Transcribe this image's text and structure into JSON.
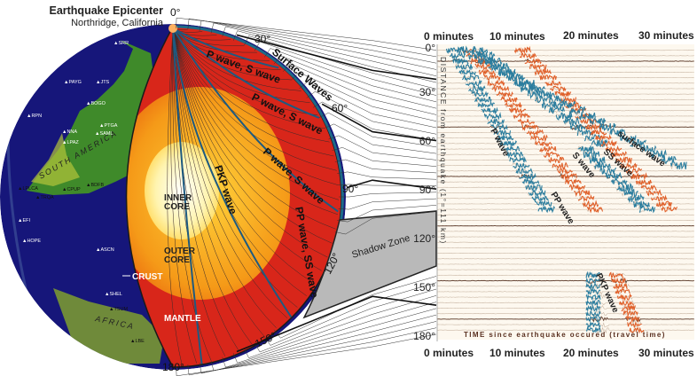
{
  "title": "Earthquake Epicenter",
  "subtitle": "Northridge, California",
  "globe_degrees": [
    "0°",
    "30°",
    "60°",
    "90°",
    "120°",
    "150°",
    "180°"
  ],
  "layers": {
    "inner_core": [
      "INNER",
      "CORE"
    ],
    "outer_core": [
      "OUTER",
      "CORE"
    ],
    "mantle": "MANTLE",
    "crust": "CRUST"
  },
  "ray_labels": [
    "P wave, S wave",
    "P wave, S wave",
    "P wave, S wave",
    "Surface Waves",
    "PKP wave",
    "PP wave, SS wave"
  ],
  "shadow_zone": "Shadow Zone",
  "continents": [
    "SOUTH AMERICA",
    "AFRICA"
  ],
  "stations": [
    "SRR",
    "PAYG",
    "JTS",
    "BOGO",
    "RPN",
    "PTGA",
    "SAML",
    "NNA",
    "LPAZ",
    "LPLCA",
    "BDFB",
    "CPUP",
    "TRQA",
    "EFI",
    "HOPE",
    "ASCN",
    "SHEL",
    "TSUM",
    "LBE"
  ],
  "seismogram": {
    "top_ticks": [
      "0 minutes",
      "10 minutes",
      "20 minutes",
      "30 minutes"
    ],
    "bottom_ticks": [
      "0 minutes",
      "10 minutes",
      "20 minutes",
      "30 minutes"
    ],
    "y_ticks": [
      "0°",
      "30°",
      "60°",
      "90°",
      "120°",
      "150°",
      "180°"
    ],
    "ylabel": "DISTANCE from earthquake (1°=111 km)",
    "xlabel": "TIME since earthquake occured (travel time)",
    "wave_labels": [
      "P wave",
      "PP wave",
      "S wave",
      "SS wave",
      "surface wave",
      "PKP wave"
    ]
  },
  "colors": {
    "ocean": "#16167a",
    "land": "#3f8a2a",
    "mantle": "#d8261a",
    "outer_core": "#f5a21a",
    "inner_core": "#fff6c8",
    "trace_blue": "#2b7d9e",
    "trace_orange": "#e0602a",
    "trace_tan": "#c9b6a4",
    "shadow": "#b9b9b9"
  }
}
